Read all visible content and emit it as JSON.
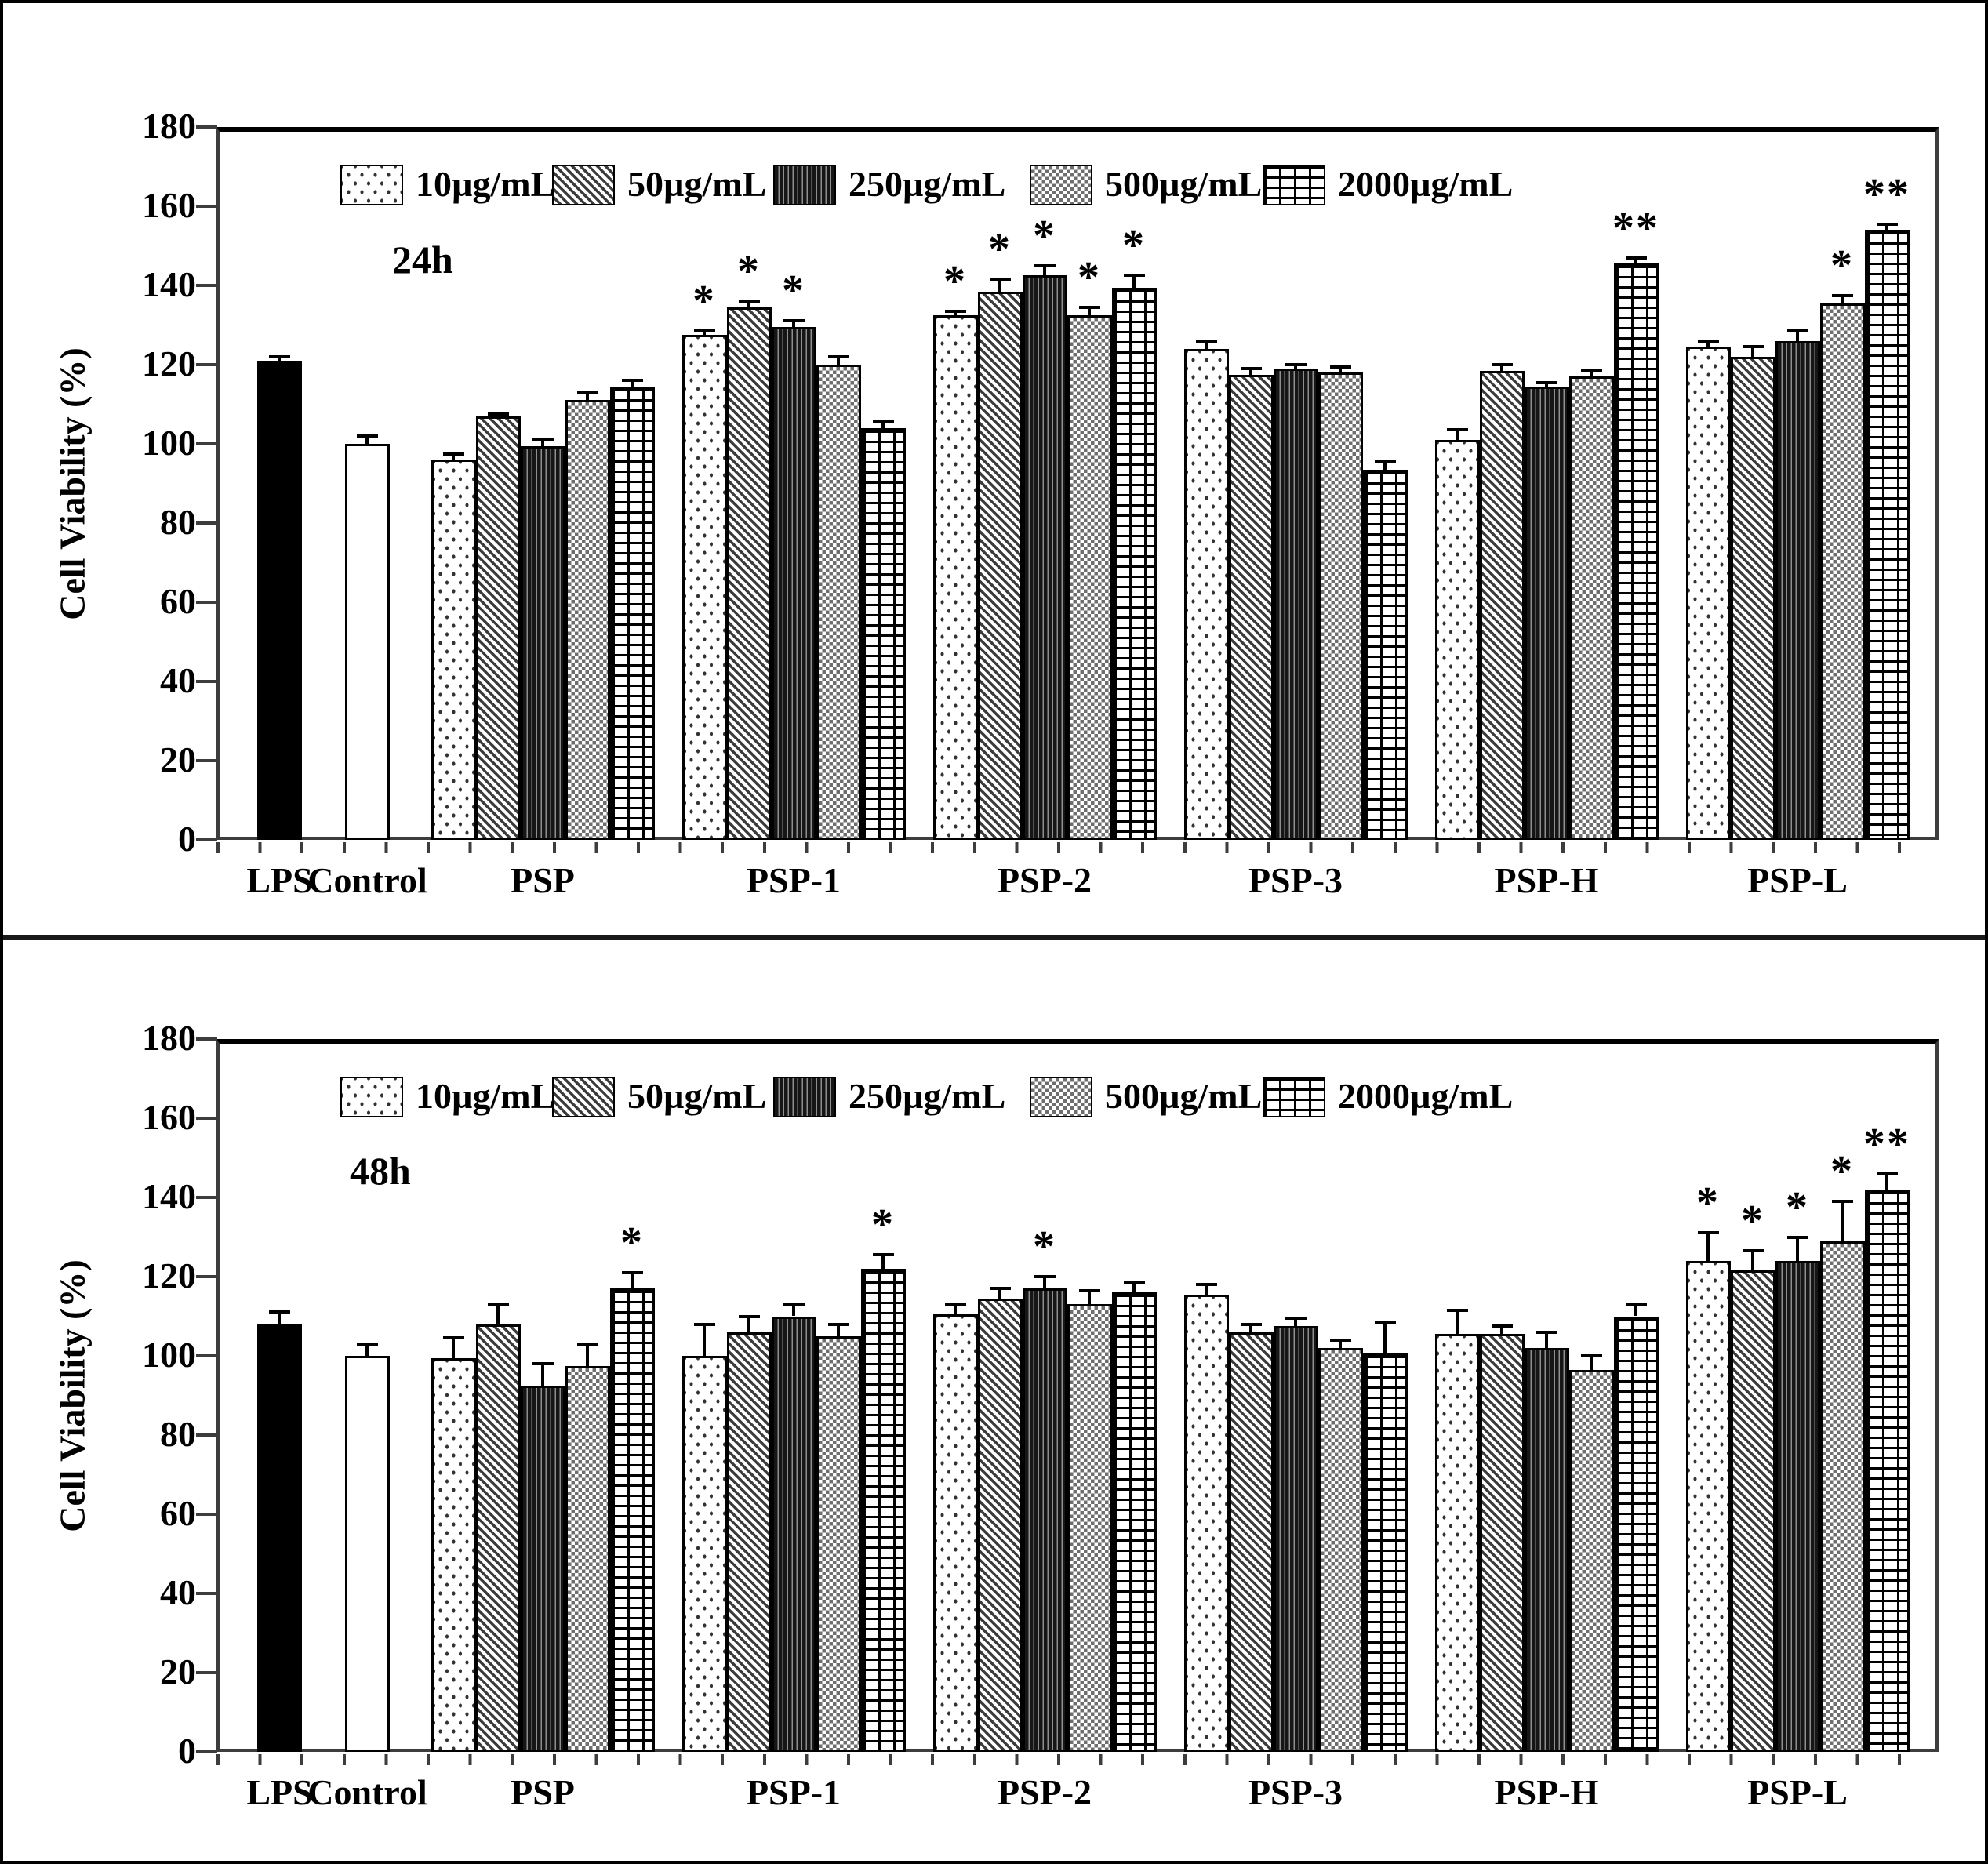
{
  "figure": {
    "background": "#ffffff",
    "frame_color": "#000000",
    "bar_outline_color": "#000000"
  },
  "chart_data": [
    {
      "type": "bar",
      "panel_label": "24h",
      "ylabel": "Cell Viability (%)",
      "ylim": [
        0,
        180
      ],
      "ytick_step": 20,
      "grid": "off",
      "legend_position": "top-inside",
      "legend": [
        {
          "label": "10µg/mL",
          "pattern": "dots"
        },
        {
          "label": "50µg/mL",
          "pattern": "diagonal"
        },
        {
          "label": "250µg/mL",
          "pattern": "vertical"
        },
        {
          "label": "500µg/mL",
          "pattern": "checker"
        },
        {
          "label": "2000µg/mL",
          "pattern": "brick"
        }
      ],
      "leading_bars": [
        {
          "label": "LPS",
          "pattern": "solid",
          "value": 121,
          "error": 1,
          "sig": ""
        },
        {
          "label": "Control",
          "pattern": "plain",
          "value": 100,
          "error": 2,
          "sig": ""
        }
      ],
      "groups": [
        {
          "label": "PSP",
          "values": [
            96,
            107,
            99.5,
            111,
            114.5
          ],
          "errors": [
            1.5,
            0.5,
            1.5,
            2,
            1.5
          ],
          "sig": [
            "",
            "",
            "",
            "",
            ""
          ]
        },
        {
          "label": "PSP-1",
          "values": [
            127.5,
            134.5,
            129.5,
            120,
            104
          ],
          "errors": [
            1,
            1.5,
            1.5,
            2,
            1.5
          ],
          "sig": [
            "*",
            "*",
            "*",
            "",
            ""
          ]
        },
        {
          "label": "PSP-2",
          "values": [
            132.5,
            138.5,
            142.5,
            132.5,
            139.5
          ],
          "errors": [
            1,
            3,
            2.5,
            2,
            3
          ],
          "sig": [
            "*",
            "*",
            "*",
            "*",
            "*"
          ]
        },
        {
          "label": "PSP-3",
          "values": [
            124,
            117.5,
            119,
            118,
            93.5
          ],
          "errors": [
            2,
            1.5,
            1,
            1.5,
            2
          ],
          "sig": [
            "",
            "",
            "",
            "",
            ""
          ]
        },
        {
          "label": "PSP-H",
          "values": [
            101,
            118.5,
            114.5,
            117,
            145.5
          ],
          "errors": [
            2.5,
            1.5,
            1,
            1.5,
            1.5
          ],
          "sig": [
            "",
            "",
            "",
            "",
            "**"
          ]
        },
        {
          "label": "PSP-L",
          "values": [
            124.5,
            122,
            126,
            135.5,
            154
          ],
          "errors": [
            1.5,
            2.5,
            2.5,
            2,
            1.5
          ],
          "sig": [
            "",
            "",
            "",
            "*",
            "**"
          ]
        }
      ]
    },
    {
      "type": "bar",
      "panel_label": "48h",
      "ylabel": "Cell Viability (%)",
      "ylim": [
        0,
        180
      ],
      "ytick_step": 20,
      "grid": "off",
      "legend_position": "top-inside",
      "legend": [
        {
          "label": "10µg/mL",
          "pattern": "dots"
        },
        {
          "label": "50µg/mL",
          "pattern": "diagonal"
        },
        {
          "label": "250µg/mL",
          "pattern": "vertical"
        },
        {
          "label": "500µg/mL",
          "pattern": "checker"
        },
        {
          "label": "2000µg/mL",
          "pattern": "brick"
        }
      ],
      "leading_bars": [
        {
          "label": "LPS",
          "pattern": "solid",
          "value": 108,
          "error": 3,
          "sig": ""
        },
        {
          "label": "Control",
          "pattern": "plain",
          "value": 100,
          "error": 3,
          "sig": ""
        }
      ],
      "groups": [
        {
          "label": "PSP",
          "values": [
            99.5,
            108,
            92.5,
            97.5,
            117
          ],
          "errors": [
            5,
            5,
            5.5,
            5.5,
            4
          ],
          "sig": [
            "",
            "",
            "",
            "",
            "*"
          ]
        },
        {
          "label": "PSP-1",
          "values": [
            100,
            106,
            110,
            105,
            122
          ],
          "errors": [
            8,
            4,
            3,
            3,
            3.5
          ],
          "sig": [
            "",
            "",
            "",
            "",
            "*"
          ]
        },
        {
          "label": "PSP-2",
          "values": [
            110.5,
            114.5,
            117,
            113,
            116
          ],
          "errors": [
            2.5,
            2.5,
            3,
            3.5,
            2.5
          ],
          "sig": [
            "",
            "",
            "*",
            "",
            ""
          ]
        },
        {
          "label": "PSP-3",
          "values": [
            115.5,
            106,
            107.5,
            102,
            100.5
          ],
          "errors": [
            2.5,
            2,
            2,
            2,
            8
          ],
          "sig": [
            "",
            "",
            "",
            "",
            ""
          ]
        },
        {
          "label": "PSP-H",
          "values": [
            105.5,
            105.5,
            102,
            96.5,
            110
          ],
          "errors": [
            6,
            2,
            4,
            3.5,
            3
          ],
          "sig": [
            "",
            "",
            "",
            "",
            ""
          ]
        },
        {
          "label": "PSP-L",
          "values": [
            124,
            121.5,
            124,
            129,
            142
          ],
          "errors": [
            7,
            5,
            6,
            10,
            4
          ],
          "sig": [
            "*",
            "*",
            "*",
            "*",
            "**"
          ]
        }
      ]
    }
  ]
}
